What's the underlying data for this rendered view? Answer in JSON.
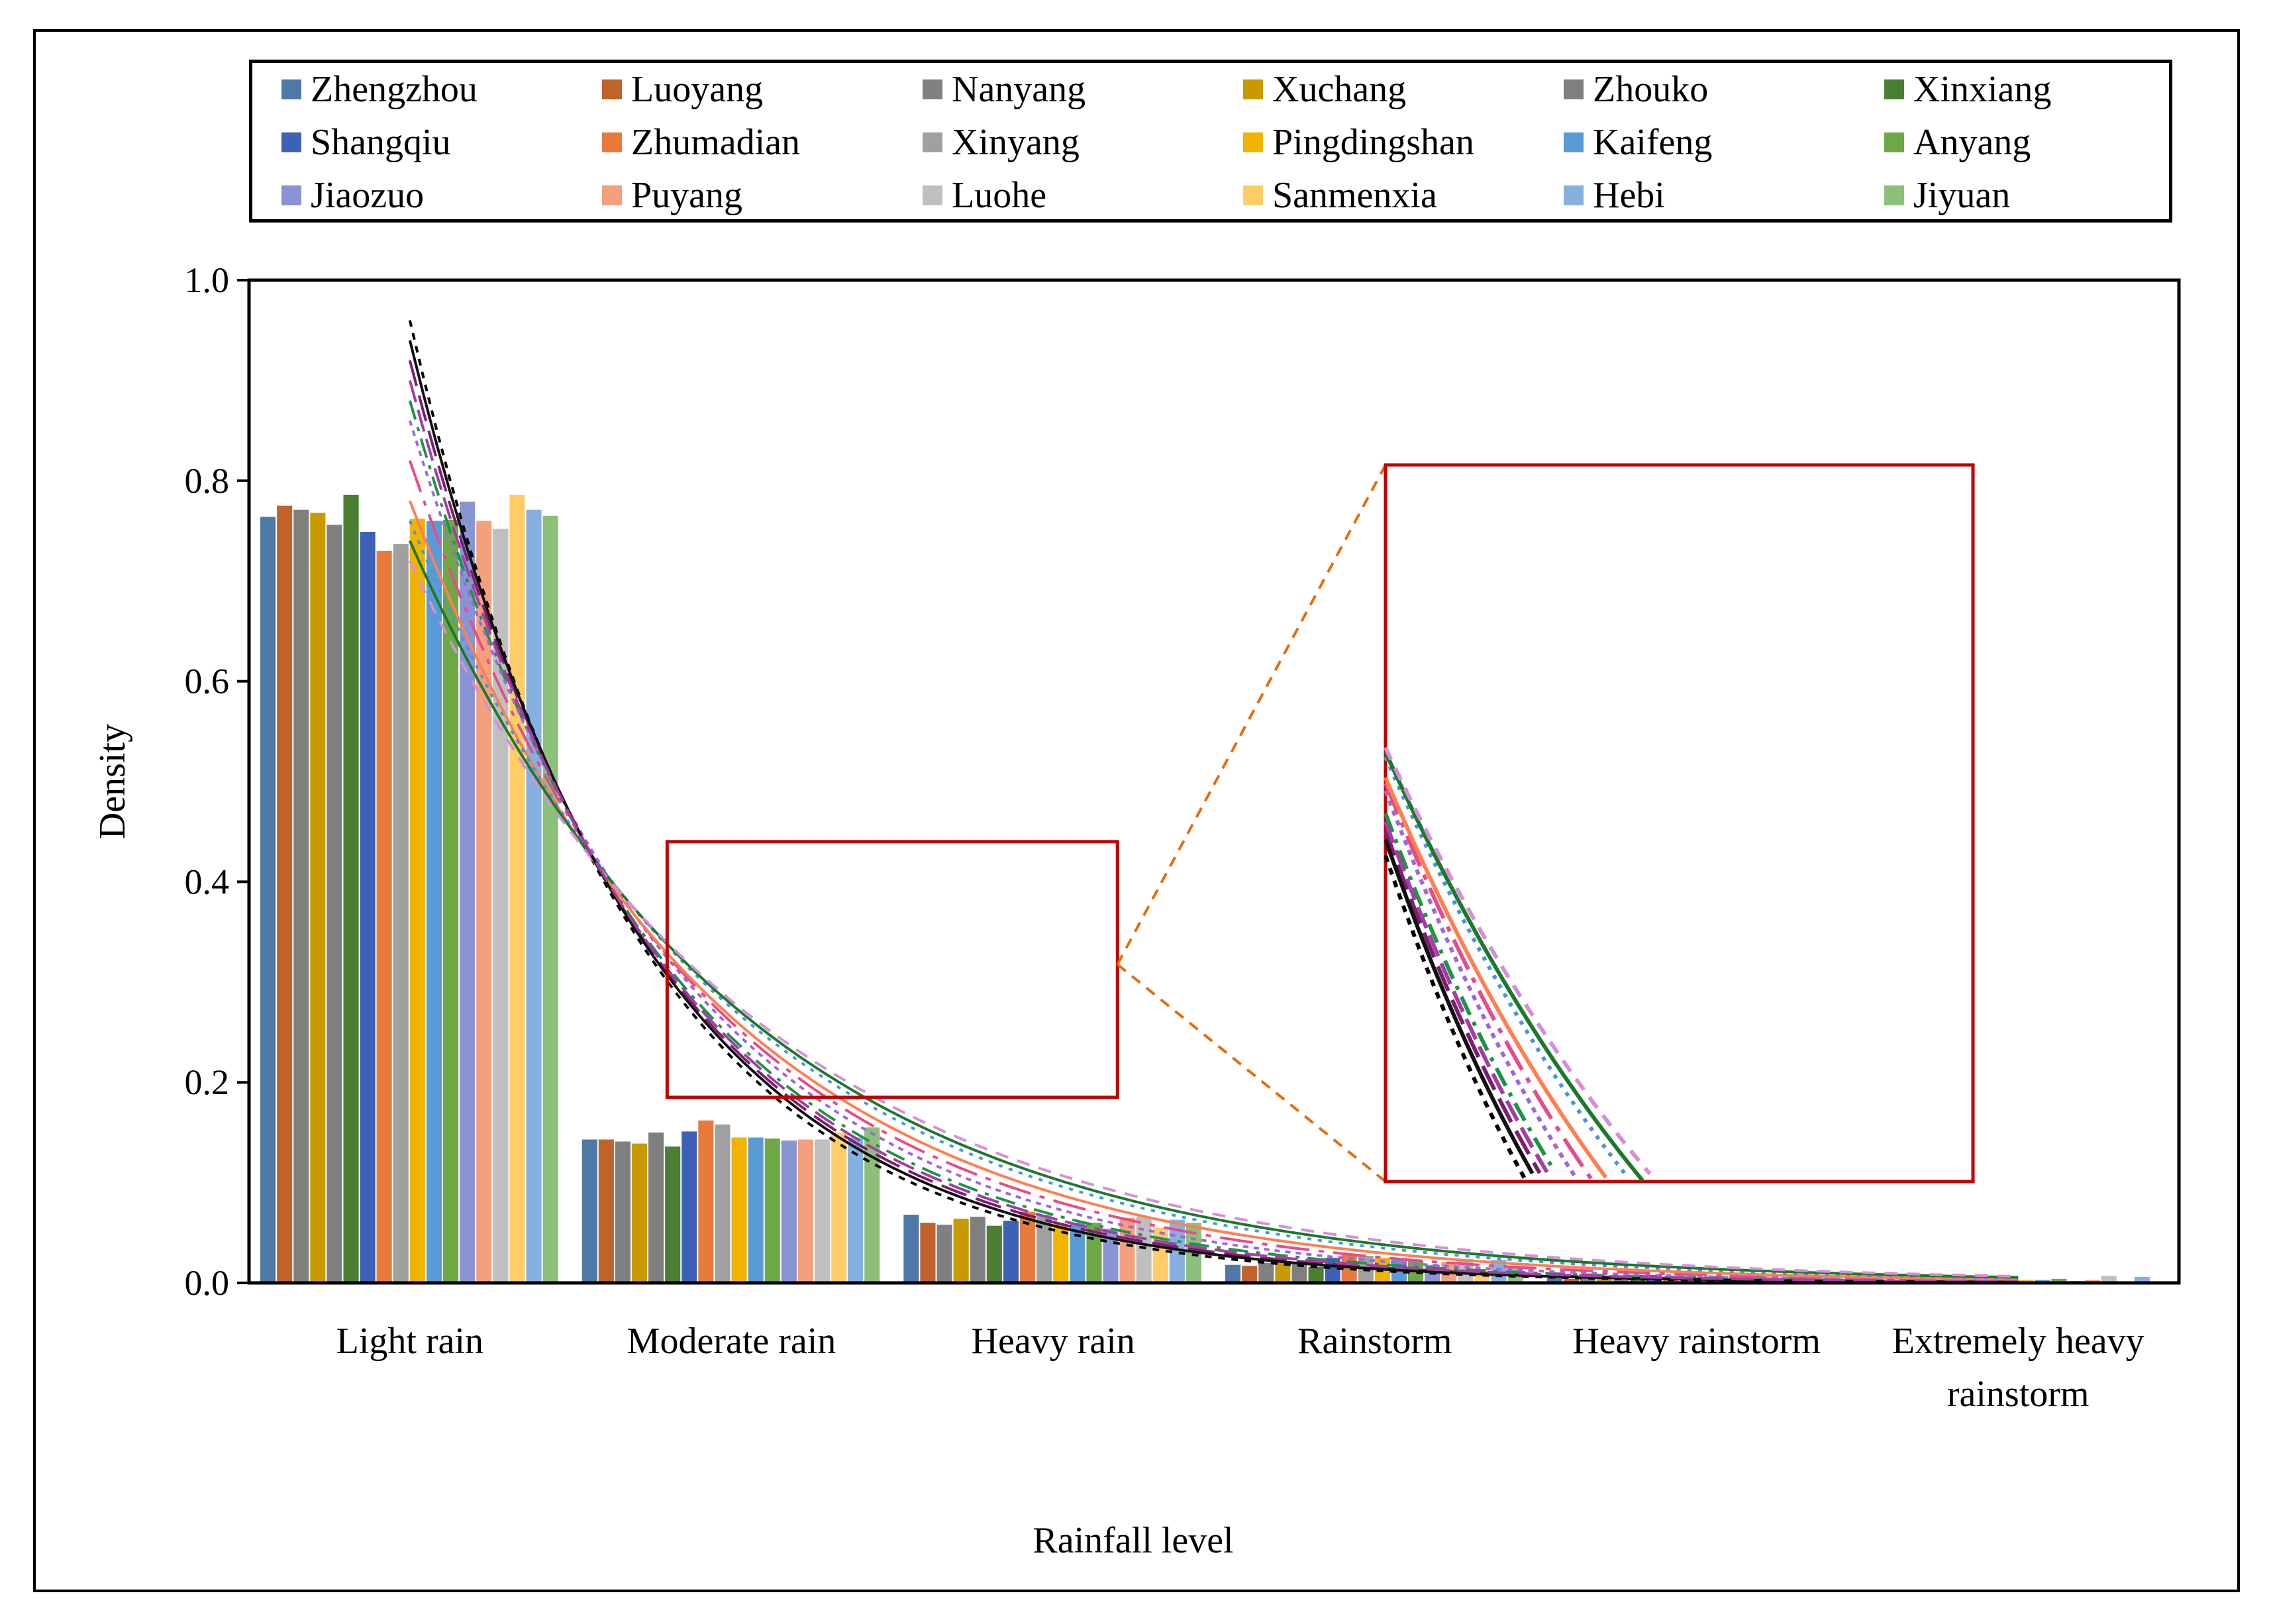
{
  "chart_data": {
    "type": "bar",
    "xlabel": "Rainfall level",
    "ylabel": "Density",
    "ylim": [
      0,
      1.0
    ],
    "yticks": [
      "0.0",
      "0.2",
      "0.4",
      "0.6",
      "0.8",
      "1.0"
    ],
    "categories": [
      "Light rain",
      "Moderate rain",
      "Heavy rain",
      "Rainstorm",
      "Heavy rainstorm",
      "Extremely heavy rainstorm"
    ],
    "category_labels": [
      [
        "Light rain"
      ],
      [
        "Moderate rain"
      ],
      [
        "Heavy rain"
      ],
      [
        "Rainstorm"
      ],
      [
        "Heavy rainstorm"
      ],
      [
        "Extremely heavy",
        "rainstorm"
      ]
    ],
    "series": [
      {
        "name": "Zhengzhou",
        "color": "#4e79a7",
        "values": [
          0.764,
          0.143,
          0.068,
          0.018,
          0.005,
          0.002
        ]
      },
      {
        "name": "Luoyang",
        "color": "#c0622a",
        "values": [
          0.775,
          0.143,
          0.06,
          0.017,
          0.004,
          0.001
        ]
      },
      {
        "name": "Nanyang",
        "color": "#808080",
        "values": [
          0.771,
          0.141,
          0.058,
          0.02,
          0.006,
          0.002
        ]
      },
      {
        "name": "Xuchang",
        "color": "#c89a00",
        "values": [
          0.768,
          0.139,
          0.064,
          0.02,
          0.006,
          0.003
        ]
      },
      {
        "name": "Zhouko",
        "color": "#7f7f7f",
        "values": [
          0.756,
          0.15,
          0.066,
          0.019,
          0.006,
          0.003
        ]
      },
      {
        "name": "Xinxiang",
        "color": "#4a7e32",
        "values": [
          0.786,
          0.136,
          0.057,
          0.016,
          0.004,
          0.001
        ]
      },
      {
        "name": "Shangqiu",
        "color": "#3d62b5",
        "values": [
          0.749,
          0.151,
          0.062,
          0.025,
          0.008,
          0.005
        ]
      },
      {
        "name": "Zhumadian",
        "color": "#e87a3c",
        "values": [
          0.73,
          0.162,
          0.071,
          0.029,
          0.006,
          0.002
        ]
      },
      {
        "name": "Xinyang",
        "color": "#a0a0a0",
        "values": [
          0.737,
          0.158,
          0.068,
          0.027,
          0.007,
          0.003
        ]
      },
      {
        "name": "Pingdingshan",
        "color": "#f0b400",
        "values": [
          0.762,
          0.145,
          0.059,
          0.025,
          0.006,
          0.003
        ]
      },
      {
        "name": "Kaifeng",
        "color": "#5b9bd5",
        "values": [
          0.76,
          0.145,
          0.06,
          0.025,
          0.007,
          0.003
        ]
      },
      {
        "name": "Anyang",
        "color": "#6ea846",
        "values": [
          0.761,
          0.144,
          0.06,
          0.022,
          0.009,
          0.004
        ]
      },
      {
        "name": "Jiaozuo",
        "color": "#8894d3",
        "values": [
          0.779,
          0.142,
          0.054,
          0.018,
          0.005,
          0.002
        ]
      },
      {
        "name": "Puyang",
        "color": "#f4a07c",
        "values": [
          0.76,
          0.143,
          0.065,
          0.021,
          0.008,
          0.003
        ]
      },
      {
        "name": "Luohe",
        "color": "#bfbfbf",
        "values": [
          0.752,
          0.143,
          0.066,
          0.024,
          0.008,
          0.007
        ]
      },
      {
        "name": "Sanmenxia",
        "color": "#ffcc66",
        "values": [
          0.786,
          0.15,
          0.055,
          0.014,
          0.004,
          0.001
        ]
      },
      {
        "name": "Hebi",
        "color": "#86b0e0",
        "values": [
          0.771,
          0.145,
          0.063,
          0.023,
          0.008,
          0.006
        ]
      },
      {
        "name": "Jiyuan",
        "color": "#8cc07a",
        "values": [
          0.765,
          0.155,
          0.06,
          0.016,
          0.003,
          0.001
        ]
      }
    ],
    "fit_curves": {
      "style": "exponential density fits, one per city",
      "start_y": [
        0.96,
        0.92,
        0.88,
        0.86,
        0.82,
        0.78,
        0.76,
        0.74,
        0.72,
        0.94,
        0.9
      ],
      "decay": [
        1.45,
        1.36,
        1.28,
        1.22,
        1.15,
        1.08,
        1.02,
        0.98,
        0.94,
        1.4,
        1.32
      ],
      "colors": [
        "#000000",
        "#7b1f6e",
        "#1a9641",
        "#9e68d6",
        "#e64b8c",
        "#ff7f50",
        "#4d94d6",
        "#1a7a2a",
        "#d68fd6",
        "#111111",
        "#a33da6"
      ]
    },
    "zoom_inset": {
      "source_region": {
        "x_range": [
          1.3,
          2.7
        ],
        "y_range": [
          0.185,
          0.44
        ]
      },
      "border_color": "#c00000",
      "connector_color": "#e46c0a"
    }
  }
}
